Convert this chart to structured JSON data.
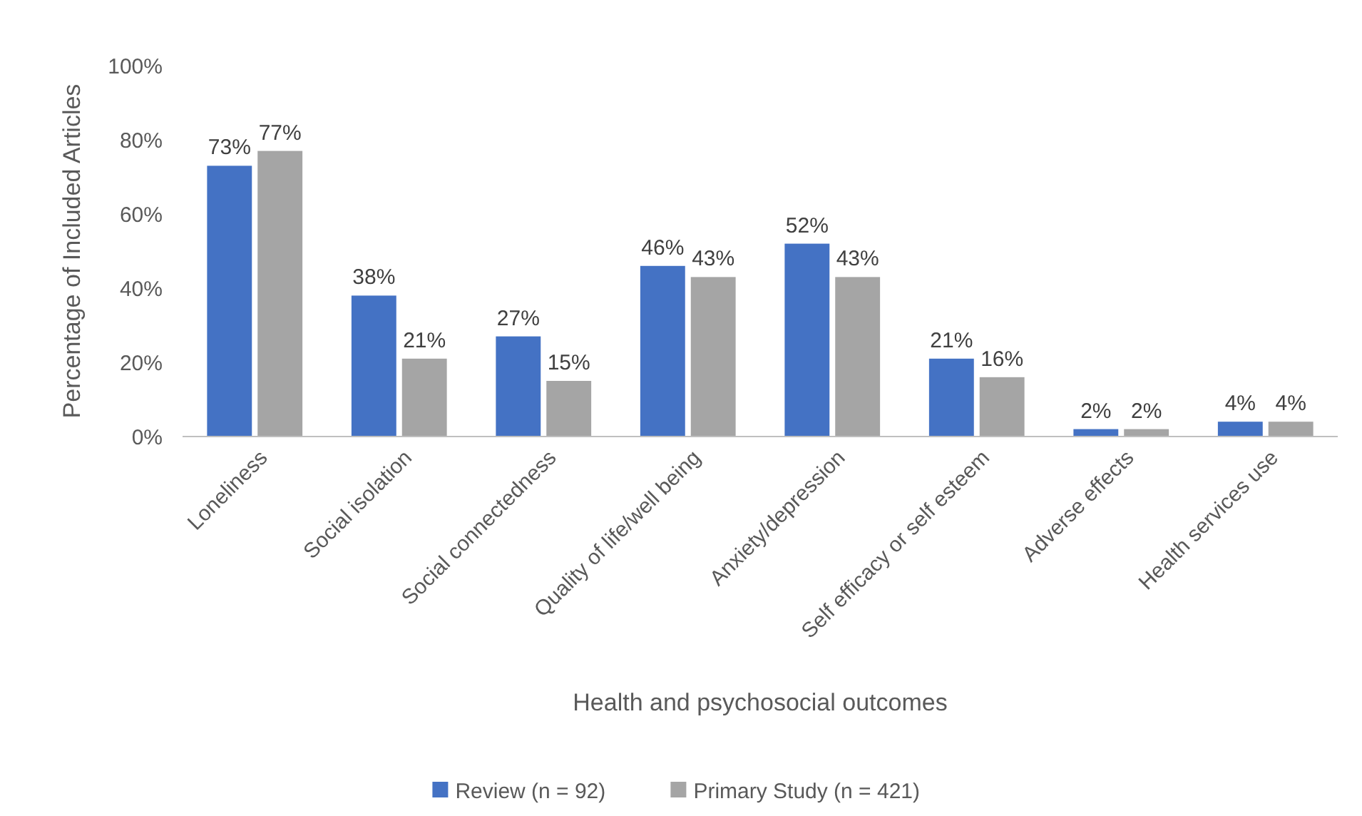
{
  "chart_data": {
    "type": "bar",
    "xlabel": "Health and psychosocial outcomes",
    "ylabel": "Percentage of Included Articles",
    "categories": [
      "Loneliness",
      "Social isolation",
      "Social connectedness",
      "Quality of life/well being",
      "Anxiety/depression",
      "Self efficacy or self esteem",
      "Adverse effects",
      "Health services use"
    ],
    "series": [
      {
        "name": "Review (n = 92)",
        "color": "#4472c4",
        "values": [
          73,
          38,
          27,
          46,
          52,
          21,
          2,
          4
        ],
        "value_labels": [
          "73%",
          "38%",
          "27%",
          "46%",
          "52%",
          "21%",
          "2%",
          "4%"
        ]
      },
      {
        "name": "Primary Study (n = 421)",
        "color": "#a5a5a5",
        "values": [
          77,
          21,
          15,
          43,
          43,
          16,
          2,
          4
        ],
        "value_labels": [
          "77%",
          "21%",
          "15%",
          "43%",
          "43%",
          "16%",
          "2%",
          "4%"
        ]
      }
    ],
    "ylim": [
      0,
      100
    ],
    "yticks": [
      {
        "value": 0,
        "label": "0%"
      },
      {
        "value": 20,
        "label": "20%"
      },
      {
        "value": 40,
        "label": "40%"
      },
      {
        "value": 60,
        "label": "60%"
      },
      {
        "value": 80,
        "label": "80%"
      },
      {
        "value": 100,
        "label": "100%"
      }
    ],
    "grid": false,
    "legend": "bottom"
  }
}
